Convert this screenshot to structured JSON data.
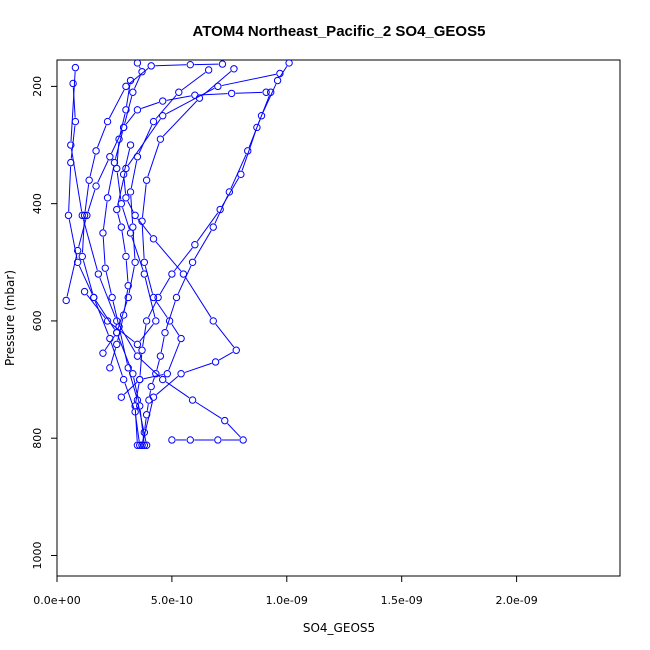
{
  "chart_data": {
    "type": "scatter",
    "title": "ATOM4 Northeast_Pacific_2 SO4_GEOS5",
    "xlabel": "SO4_GEOS5",
    "ylabel": "Pressure (mbar)",
    "xlim": [
      0,
      2.45e-09
    ],
    "ylim": [
      1035,
      155
    ],
    "y_reversed": true,
    "x_ticks": [
      0,
      5e-10,
      1e-09,
      1.5e-09,
      2e-09
    ],
    "x_tick_labels": [
      "0.0e+00",
      "5.0e-10",
      "1.0e-09",
      "1.5e-09",
      "2.0e-09"
    ],
    "y_ticks": [
      200,
      400,
      600,
      800,
      1000
    ],
    "y_tick_labels": [
      "200",
      "400",
      "600",
      "800",
      "1000"
    ],
    "grid": false,
    "legend": "none",
    "line_color": "#0000ff",
    "marker": "open-circle",
    "series": [
      {
        "x": [
          3.7e-10,
          3.8e-10,
          3.9e-10,
          4e-10,
          4.1e-10,
          4.3e-10,
          4.5e-10,
          4.7e-10,
          5.2e-10,
          5.9e-10,
          6.8e-10,
          7.5e-10,
          8.3e-10,
          8.9e-10,
          9.6e-10,
          1.01e-09
        ],
        "y": [
          812,
          790,
          760,
          735,
          712,
          690,
          660,
          620,
          560,
          500,
          440,
          380,
          310,
          250,
          190,
          160
        ]
      },
      {
        "x": [
          3.5e-10,
          3.4e-10,
          3.6e-10,
          3.7e-10,
          3.9e-10,
          4.4e-10,
          5e-10,
          6e-10,
          7.1e-10,
          8e-10,
          8.7e-10,
          9.3e-10
        ],
        "y": [
          812,
          745,
          700,
          650,
          600,
          560,
          520,
          470,
          410,
          350,
          270,
          210
        ]
      },
      {
        "x": [
          3.9e-10,
          3.5e-10,
          3.1e-10,
          2.7e-10,
          2.4e-10,
          2.1e-10,
          2e-10,
          2.2e-10,
          2.5e-10,
          2.9e-10,
          3.3e-10,
          3.7e-10,
          3.5e-10
        ],
        "y": [
          812,
          735,
          680,
          610,
          560,
          510,
          450,
          390,
          330,
          270,
          210,
          175,
          160
        ]
      },
      {
        "x": [
          3.8e-10,
          3.6e-10,
          3.3e-10,
          2.6e-10,
          1.6e-10,
          9e-11,
          5e-11,
          6e-11,
          8e-11,
          7e-11
        ],
        "y": [
          812,
          745,
          690,
          620,
          560,
          500,
          420,
          330,
          260,
          195
        ]
      },
      {
        "x": [
          3.6e-10,
          3.4e-10,
          2.9e-10,
          2.3e-10,
          1.6e-10,
          1.1e-10,
          1.2e-10,
          1.4e-10,
          1.7e-10,
          2.2e-10,
          3e-10,
          4.1e-10,
          5.8e-10,
          7.2e-10
        ],
        "y": [
          812,
          755,
          700,
          630,
          560,
          490,
          420,
          360,
          310,
          260,
          200,
          165,
          163,
          162
        ]
      },
      {
        "x": [
          5e-10,
          5.8e-10,
          7e-10,
          8.1e-10,
          7.3e-10,
          5.9e-10,
          4.6e-10,
          3.5e-10,
          2.6e-10,
          1.8e-10,
          1.1e-10,
          6e-11,
          8e-11
        ],
        "y": [
          803,
          803,
          803,
          803,
          770,
          735,
          700,
          660,
          600,
          520,
          420,
          300,
          168
        ]
      },
      {
        "x": [
          3.7e-10,
          4.2e-10,
          5.4e-10,
          6.9e-10,
          7.8e-10,
          6.8e-10,
          5.5e-10,
          4.2e-10,
          3.4e-10,
          3e-10,
          2.9e-10,
          3.2e-10
        ],
        "y": [
          812,
          730,
          690,
          670,
          650,
          600,
          520,
          460,
          420,
          390,
          350,
          300
        ]
      },
      {
        "x": [
          2.8e-10,
          3.6e-10,
          4.8e-10,
          5.4e-10,
          4.9e-10,
          4.2e-10,
          3.8e-10,
          3.7e-10,
          3.9e-10,
          4.5e-10,
          6.2e-10,
          7.7e-10
        ],
        "y": [
          730,
          700,
          690,
          630,
          600,
          560,
          500,
          430,
          360,
          290,
          220,
          170
        ]
      },
      {
        "x": [
          2e-10,
          2.6e-10,
          3.1e-10,
          3.4e-10,
          3.3e-10,
          3.2e-10,
          3.5e-10,
          4.2e-10,
          5.3e-10,
          6.6e-10
        ],
        "y": [
          655,
          620,
          560,
          500,
          440,
          380,
          320,
          260,
          210,
          172
        ]
      },
      {
        "x": [
          4e-11,
          9e-11,
          1.3e-10,
          1.7e-10,
          2.3e-10,
          2.9e-10,
          3.5e-10,
          4.6e-10,
          6e-10,
          7.6e-10,
          9.1e-10
        ],
        "y": [
          565,
          480,
          420,
          370,
          320,
          270,
          240,
          225,
          215,
          212,
          210
        ]
      },
      {
        "x": [
          1.2e-10,
          2.2e-10,
          3.5e-10,
          4.3e-10,
          3.8e-10,
          3.2e-10,
          2.8e-10,
          2.6e-10,
          2.7e-10,
          3e-10,
          3.2e-10
        ],
        "y": [
          550,
          600,
          640,
          600,
          520,
          450,
          400,
          340,
          290,
          240,
          190
        ]
      },
      {
        "x": [
          2.3e-10,
          2.6e-10,
          2.9e-10,
          3.1e-10,
          3e-10,
          2.8e-10,
          2.6e-10,
          3e-10,
          4.6e-10,
          7e-10,
          9.7e-10
        ],
        "y": [
          680,
          640,
          590,
          540,
          490,
          440,
          410,
          340,
          250,
          200,
          178
        ]
      }
    ]
  }
}
